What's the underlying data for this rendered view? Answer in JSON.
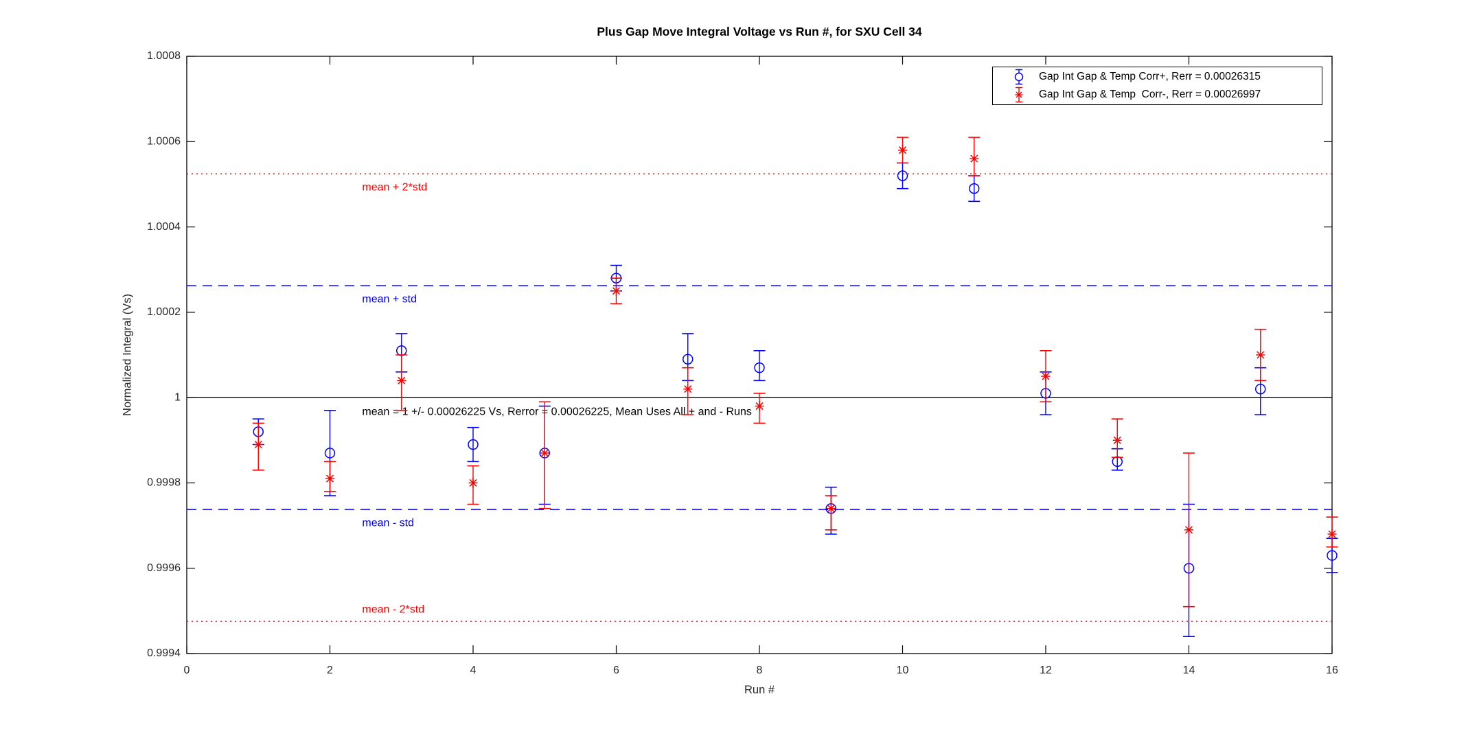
{
  "chart_data": {
    "type": "scatter",
    "title": "Plus Gap Move Integral Voltage vs Run #, for SXU Cell 34",
    "xlabel": "Run #",
    "ylabel": "Normalized Integral (Vs)",
    "xlim": [
      0,
      16
    ],
    "ylim": [
      0.9994,
      1.0008
    ],
    "grid": false,
    "legend_position": "top-right-inside",
    "xticks": [
      {
        "value": 0,
        "label": "0"
      },
      {
        "value": 2,
        "label": "2"
      },
      {
        "value": 4,
        "label": "4"
      },
      {
        "value": 6,
        "label": "6"
      },
      {
        "value": 8,
        "label": "8"
      },
      {
        "value": 10,
        "label": "10"
      },
      {
        "value": 12,
        "label": "12"
      },
      {
        "value": 14,
        "label": "14"
      },
      {
        "value": 16,
        "label": "16"
      }
    ],
    "yticks": [
      {
        "value": 1.0008,
        "label": "1.0008"
      },
      {
        "value": 1.0006,
        "label": "1.0006"
      },
      {
        "value": 1.0004,
        "label": "1.0004"
      },
      {
        "value": 1.0002,
        "label": "1.0002"
      },
      {
        "value": 1.0,
        "label": "1"
      },
      {
        "value": 0.9998,
        "label": "0.9998"
      },
      {
        "value": 0.9996,
        "label": "0.9996"
      },
      {
        "value": 0.9994,
        "label": "0.9994"
      }
    ],
    "series": [
      {
        "name": "Gap Int Gap & Temp Corr+, Rerr = 0.00026315",
        "marker": "circle",
        "color": "#0000ff",
        "points": [
          {
            "x": 1,
            "y": 0.99992,
            "hi": 0.99995,
            "lo": 0.99989
          },
          {
            "x": 2,
            "y": 0.99987,
            "hi": 0.99997,
            "lo": 0.99977
          },
          {
            "x": 3,
            "y": 1.00011,
            "hi": 1.00015,
            "lo": 1.00006
          },
          {
            "x": 4,
            "y": 0.99989,
            "hi": 0.99993,
            "lo": 0.99985
          },
          {
            "x": 5,
            "y": 0.99987,
            "hi": 0.99998,
            "lo": 0.99975
          },
          {
            "x": 6,
            "y": 1.00028,
            "hi": 1.00031,
            "lo": 1.00025
          },
          {
            "x": 7,
            "y": 1.00009,
            "hi": 1.00015,
            "lo": 1.00004
          },
          {
            "x": 8,
            "y": 1.00007,
            "hi": 1.00011,
            "lo": 1.00004
          },
          {
            "x": 9,
            "y": 0.99974,
            "hi": 0.99979,
            "lo": 0.99968
          },
          {
            "x": 10,
            "y": 1.00052,
            "hi": 1.00055,
            "lo": 1.00049
          },
          {
            "x": 11,
            "y": 1.00049,
            "hi": 1.00052,
            "lo": 1.00046
          },
          {
            "x": 12,
            "y": 1.00001,
            "hi": 1.00006,
            "lo": 0.99996
          },
          {
            "x": 13,
            "y": 0.99985,
            "hi": 0.99988,
            "lo": 0.99983
          },
          {
            "x": 14,
            "y": 0.9996,
            "hi": 0.99975,
            "lo": 0.99944
          },
          {
            "x": 15,
            "y": 1.00002,
            "hi": 1.00007,
            "lo": 0.99996
          },
          {
            "x": 16,
            "y": 0.99963,
            "hi": 0.99967,
            "lo": 0.99959
          }
        ]
      },
      {
        "name": "Gap Int Gap & Temp  Corr-, Rerr = 0.00026997",
        "marker": "asterisk",
        "color": "#ff0000",
        "points": [
          {
            "x": 1,
            "y": 0.99989,
            "hi": 0.99994,
            "lo": 0.99983
          },
          {
            "x": 2,
            "y": 0.99981,
            "hi": 0.99985,
            "lo": 0.99978
          },
          {
            "x": 3,
            "y": 1.00004,
            "hi": 1.0001,
            "lo": 0.99997
          },
          {
            "x": 4,
            "y": 0.9998,
            "hi": 0.99984,
            "lo": 0.99975
          },
          {
            "x": 5,
            "y": 0.99987,
            "hi": 0.99999,
            "lo": 0.99974
          },
          {
            "x": 6,
            "y": 1.00025,
            "hi": 1.00028,
            "lo": 1.00022
          },
          {
            "x": 7,
            "y": 1.00002,
            "hi": 1.00007,
            "lo": 0.99996
          },
          {
            "x": 8,
            "y": 0.99998,
            "hi": 1.00001,
            "lo": 0.99994
          },
          {
            "x": 9,
            "y": 0.99974,
            "hi": 0.99977,
            "lo": 0.99969
          },
          {
            "x": 10,
            "y": 1.00058,
            "hi": 1.00061,
            "lo": 1.00055
          },
          {
            "x": 11,
            "y": 1.00056,
            "hi": 1.00061,
            "lo": 1.00052
          },
          {
            "x": 12,
            "y": 1.00005,
            "hi": 1.00011,
            "lo": 0.99999
          },
          {
            "x": 13,
            "y": 0.9999,
            "hi": 0.99995,
            "lo": 0.99986
          },
          {
            "x": 14,
            "y": 0.99969,
            "hi": 0.99987,
            "lo": 0.99951
          },
          {
            "x": 15,
            "y": 1.0001,
            "hi": 1.00016,
            "lo": 1.00004
          },
          {
            "x": 16,
            "y": 0.99968,
            "hi": 0.99972,
            "lo": 0.99965
          }
        ]
      }
    ],
    "reference_lines": [
      {
        "label": "mean + 2*std",
        "value": 1.0005245,
        "color": "#ff0000",
        "style": "dotted",
        "label_side": "below"
      },
      {
        "label": "mean + std",
        "value": 1.00026225,
        "color": "#0000ff",
        "style": "dashed",
        "label_side": "below"
      },
      {
        "label": "",
        "value": 1.0,
        "color": "#000000",
        "style": "solid",
        "label_side": "none"
      },
      {
        "label": "mean - std",
        "value": 0.99973775,
        "color": "#0000ff",
        "style": "dashed",
        "label_side": "below"
      },
      {
        "label": "mean - 2*std",
        "value": 0.9994755,
        "color": "#ff0000",
        "style": "dotted",
        "label_side": "above"
      }
    ],
    "annotation": {
      "text": "mean = 1 +/- 0.00026225 Vs, Rerror = 0.00026225, Mean Uses All + and - Runs",
      "attach_value": 1.0,
      "side": "below"
    }
  }
}
